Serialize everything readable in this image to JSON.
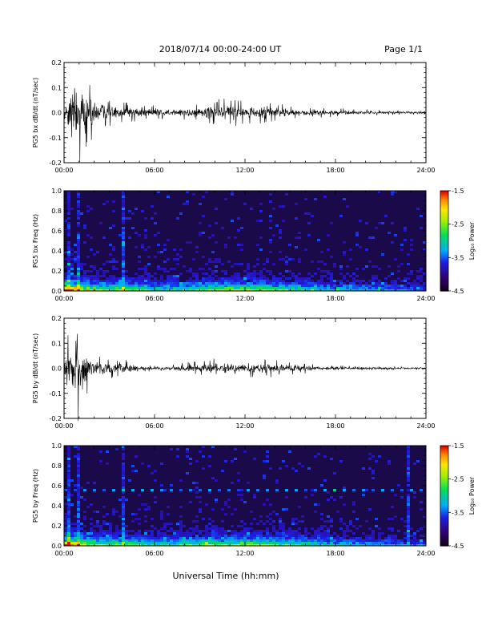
{
  "header": {
    "title": "2018/07/14  00:00-24:00 UT",
    "page": "Page 1/1"
  },
  "footer": {
    "xlabel": "Universal Time (hh:mm)"
  },
  "colors": {
    "trace": "#000000",
    "spectrogram_background": "#1b0a4a",
    "axis": "#000000"
  },
  "chart_data": [
    {
      "type": "line",
      "ylabel": "PG5 bx dB/dt (nT/sec)",
      "x_ticks": [
        "00:00",
        "06:00",
        "12:00",
        "18:00",
        "24:00"
      ],
      "xlim": [
        0,
        24
      ],
      "ylim": [
        -0.2,
        0.2
      ],
      "y_ticks": [
        -0.2,
        -0.1,
        0.0,
        0.1,
        0.2
      ],
      "y_tick_labels": [
        "-0.2",
        "-0.1",
        "0.0",
        "0.1",
        "0.2"
      ],
      "envelope": {
        "x": [
          0,
          0.25,
          0.5,
          0.75,
          1,
          1.25,
          1.5,
          1.75,
          2,
          2.5,
          3,
          3.5,
          4,
          4.5,
          5,
          5.5,
          6,
          7,
          8,
          9,
          9.5,
          10,
          10.5,
          11,
          11.5,
          12,
          12.5,
          13,
          13.5,
          14,
          14.5,
          15,
          16,
          17,
          18,
          19,
          20,
          21,
          22,
          23,
          24
        ],
        "amplitude": [
          0.04,
          0.12,
          0.18,
          0.2,
          0.17,
          0.15,
          0.13,
          0.1,
          0.07,
          0.05,
          0.045,
          0.04,
          0.035,
          0.03,
          0.03,
          0.025,
          0.025,
          0.02,
          0.025,
          0.03,
          0.035,
          0.04,
          0.05,
          0.05,
          0.045,
          0.04,
          0.035,
          0.04,
          0.035,
          0.03,
          0.03,
          0.025,
          0.02,
          0.018,
          0.015,
          0.013,
          0.011,
          0.01,
          0.008,
          0.007,
          0.006
        ]
      }
    },
    {
      "type": "heatmap",
      "ylabel": "PG5 bx Freq (Hz)",
      "x_ticks": [
        "00:00",
        "06:00",
        "12:00",
        "18:00",
        "24:00"
      ],
      "xlim": [
        0,
        24
      ],
      "ylim": [
        0.0,
        1.0
      ],
      "y_ticks": [
        0.0,
        0.2,
        0.4,
        0.6,
        0.8,
        1.0
      ],
      "y_tick_labels": [
        "0.0",
        "0.2",
        "0.4",
        "0.6",
        "0.8",
        "1.0"
      ],
      "colorbar": {
        "label": "Log₁₀ Power",
        "range": [
          -4.5,
          -1.5
        ],
        "ticks": [
          -1.5,
          -2.5,
          -3.5,
          -4.5
        ],
        "tick_labels": [
          "-1.5",
          "-2.5",
          "-3.5",
          "-4.5"
        ]
      },
      "vertical_lines_hours": [
        0.3,
        1.0,
        4.0
      ],
      "low_freq_band": {
        "x": [
          0,
          1,
          2,
          3,
          4,
          6,
          8,
          9,
          10,
          11,
          12,
          13,
          14,
          15,
          16,
          18,
          20,
          22,
          24
        ],
        "level": [
          0.95,
          0.8,
          0.6,
          0.55,
          0.6,
          0.4,
          0.45,
          0.55,
          0.6,
          0.6,
          0.6,
          0.6,
          0.55,
          0.5,
          0.45,
          0.35,
          0.3,
          0.25,
          0.2
        ]
      }
    },
    {
      "type": "line",
      "ylabel": "PG5 by dB/dt (nT/sec)",
      "x_ticks": [
        "00:00",
        "06:00",
        "12:00",
        "18:00",
        "24:00"
      ],
      "xlim": [
        0,
        24
      ],
      "ylim": [
        -0.2,
        0.2
      ],
      "y_ticks": [
        -0.2,
        -0.1,
        0.0,
        0.1,
        0.2
      ],
      "y_tick_labels": [
        "-0.2",
        "-0.1",
        "0.0",
        "0.1",
        "0.2"
      ],
      "envelope": {
        "x": [
          0,
          0.25,
          0.5,
          0.75,
          1,
          1.25,
          1.5,
          1.75,
          2,
          2.5,
          3,
          3.5,
          4,
          4.5,
          5,
          5.5,
          6,
          7,
          8,
          9,
          9.5,
          10,
          10.5,
          11,
          11.5,
          12,
          12.5,
          13,
          13.5,
          14,
          14.5,
          15,
          16,
          17,
          18,
          19,
          20,
          21,
          22,
          23,
          24
        ],
        "amplitude": [
          0.05,
          0.12,
          0.2,
          0.2,
          0.18,
          0.14,
          0.1,
          0.07,
          0.05,
          0.04,
          0.035,
          0.03,
          0.03,
          0.02,
          0.015,
          0.012,
          0.01,
          0.012,
          0.02,
          0.025,
          0.03,
          0.035,
          0.035,
          0.03,
          0.035,
          0.035,
          0.035,
          0.03,
          0.03,
          0.03,
          0.025,
          0.022,
          0.018,
          0.012,
          0.01,
          0.008,
          0.007,
          0.006,
          0.006,
          0.005,
          0.005
        ]
      }
    },
    {
      "type": "heatmap",
      "ylabel": "PG5 by Freq (Hz)",
      "x_ticks": [
        "00:00",
        "06:00",
        "12:00",
        "18:00",
        "24:00"
      ],
      "xlim": [
        0,
        24
      ],
      "ylim": [
        0.0,
        1.0
      ],
      "y_ticks": [
        0.0,
        0.2,
        0.4,
        0.6,
        0.8,
        1.0
      ],
      "y_tick_labels": [
        "0.0",
        "0.2",
        "0.4",
        "0.6",
        "0.8",
        "1.0"
      ],
      "colorbar": {
        "label": "Log₁₀ Power",
        "range": [
          -4.5,
          -1.5
        ],
        "ticks": [
          -1.5,
          -2.5,
          -3.5,
          -4.5
        ],
        "tick_labels": [
          "-1.5",
          "-2.5",
          "-3.5",
          "-4.5"
        ]
      },
      "vertical_lines_hours": [
        0.3,
        1.0,
        4.0,
        22.8
      ],
      "horizontal_lines_hz": [
        0.55
      ],
      "low_freq_band": {
        "x": [
          0,
          1,
          2,
          3,
          4,
          6,
          8,
          9,
          10,
          11,
          12,
          13,
          14,
          15,
          16,
          18,
          20,
          22,
          24
        ],
        "level": [
          0.95,
          0.8,
          0.6,
          0.55,
          0.6,
          0.45,
          0.5,
          0.55,
          0.6,
          0.6,
          0.6,
          0.6,
          0.55,
          0.5,
          0.45,
          0.35,
          0.3,
          0.25,
          0.2
        ]
      }
    }
  ]
}
